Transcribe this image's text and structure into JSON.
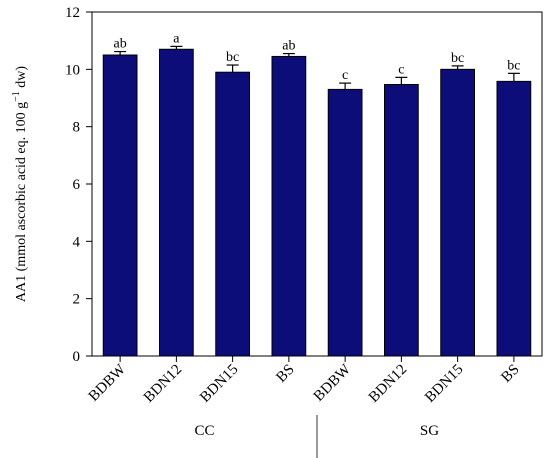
{
  "chart_data": {
    "type": "bar",
    "ylabel": "AA1 (mmol ascorbic acid eq. 100 g",
    "ylabel_sup": "−1",
    "ylabel_tail": " dw)",
    "ylim": [
      0,
      12
    ],
    "yticks": [
      "0",
      "2",
      "4",
      "6",
      "8",
      "10",
      "12"
    ],
    "categories": [
      "BDBW",
      "BDN12",
      "BDN15",
      "BS",
      "BDBW",
      "BDN12",
      "BDN15",
      "BS"
    ],
    "values": [
      10.5,
      10.7,
      9.9,
      10.45,
      9.3,
      9.47,
      10.0,
      9.58
    ],
    "errors": [
      0.12,
      0.1,
      0.25,
      0.1,
      0.22,
      0.25,
      0.12,
      0.28
    ],
    "letters": [
      "ab",
      "a",
      "bc",
      "ab",
      "c",
      "c",
      "bc",
      "bc"
    ],
    "groups": [
      {
        "label": "CC",
        "count": 4
      },
      {
        "label": "SG",
        "count": 4
      }
    ],
    "bar_color": "#0d0d7a"
  }
}
